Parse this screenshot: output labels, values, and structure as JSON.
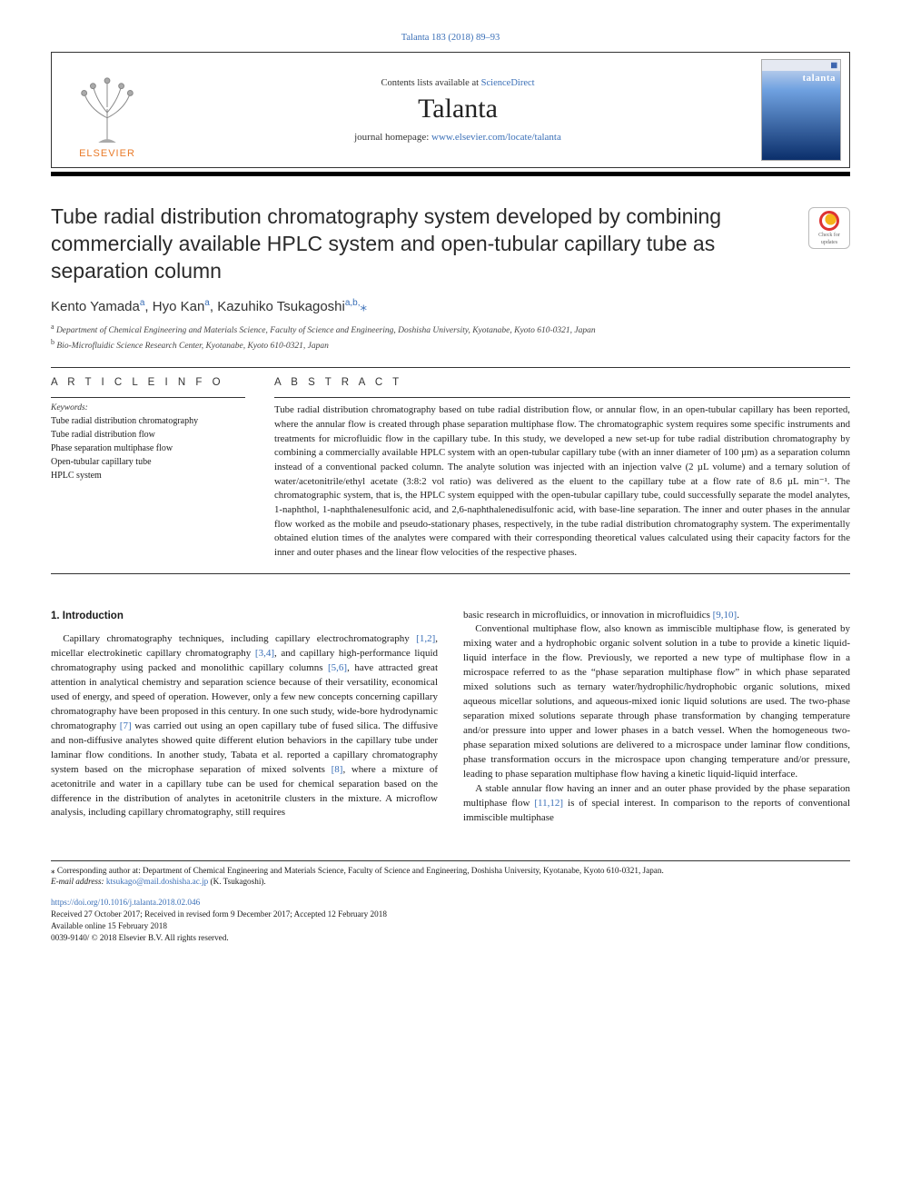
{
  "page_ref": "Talanta 183 (2018) 89–93",
  "header": {
    "contents_prefix": "Contents lists available at ",
    "contents_link": "ScienceDirect",
    "journal": "Talanta",
    "homepage_prefix": "journal homepage: ",
    "homepage_link": "www.elsevier.com/locate/talanta",
    "publisher_word": "ELSEVIER",
    "cover_word": "talanta"
  },
  "check_badge": {
    "line1": "Check for",
    "line2": "updates"
  },
  "title": "Tube radial distribution chromatography system developed by combining commercially available HPLC system and open-tubular capillary tube as separation column",
  "authors_html": "Kento Yamada<sup>a</sup>, Hyo Kan<sup>a</sup>, Kazuhiko Tsukagoshi<sup>a,b,</sup><span class=\"star\">⁎</span>",
  "affiliations": [
    {
      "sup": "a",
      "text": "Department of Chemical Engineering and Materials Science, Faculty of Science and Engineering, Doshisha University, Kyotanabe, Kyoto 610-0321, Japan"
    },
    {
      "sup": "b",
      "text": "Bio-Microfluidic Science Research Center, Kyotanabe, Kyoto 610-0321, Japan"
    }
  ],
  "article_info": {
    "head": "A R T I C L E  I N F O",
    "kw_label": "Keywords:",
    "keywords": [
      "Tube radial distribution chromatography",
      "Tube radial distribution flow",
      "Phase separation multiphase flow",
      "Open-tubular capillary tube",
      "HPLC system"
    ]
  },
  "abstract": {
    "head": "A B S T R A C T",
    "text": "Tube radial distribution chromatography based on tube radial distribution flow, or annular flow, in an open-tubular capillary has been reported, where the annular flow is created through phase separation multiphase flow. The chromatographic system requires some specific instruments and treatments for microfluidic flow in the capillary tube. In this study, we developed a new set-up for tube radial distribution chromatography by combining a commercially available HPLC system with an open-tubular capillary tube (with an inner diameter of 100 µm) as a separation column instead of a conventional packed column. The analyte solution was injected with an injection valve (2 µL volume) and a ternary solution of water/acetonitrile/ethyl acetate (3:8:2 vol ratio) was delivered as the eluent to the capillary tube at a flow rate of 8.6 µL min⁻¹. The chromatographic system, that is, the HPLC system equipped with the open-tubular capillary tube, could successfully separate the model analytes, 1-naphthol, 1-naphthalenesulfonic acid, and 2,6-naphthalenedisulfonic acid, with base-line separation. The inner and outer phases in the annular flow worked as the mobile and pseudo-stationary phases, respectively, in the tube radial distribution chromatography system. The experimentally obtained elution times of the analytes were compared with their corresponding theoretical values calculated using their capacity factors for the inner and outer phases and the linear flow velocities of the respective phases."
  },
  "body": {
    "intro_head": "1. Introduction",
    "col1_p1a": "Capillary chromatography techniques, including capillary electrochromatography ",
    "ref12": "[1,2]",
    "col1_p1b": ", micellar electrokinetic capillary chromatography ",
    "ref34": "[3,4]",
    "col1_p1c": ", and capillary high-performance liquid chromatography using packed and monolithic capillary columns ",
    "ref56": "[5,6]",
    "col1_p1d": ", have attracted great attention in analytical chemistry and separation science because of their versatility, economical used of energy, and speed of operation. However, only a few new concepts concerning capillary chromatography have been proposed in this century. In one such study, wide-bore hydrodynamic chromatography ",
    "ref7": "[7]",
    "col1_p1e": " was carried out using an open capillary tube of fused silica. The diffusive and non-diffusive analytes showed quite different elution behaviors in the capillary tube under laminar flow conditions. In another study, Tabata et al. reported a capillary chromatography system based on the microphase separation of mixed solvents ",
    "ref8": "[8]",
    "col1_p1f": ", where a mixture of acetonitrile and water in a capillary tube can be used for chemical separation based on the difference in the distribution of analytes in acetonitrile clusters in the mixture. A microflow analysis, including capillary chromatography, still requires",
    "col2_p1a": "basic research in microfluidics, or innovation in microfluidics ",
    "ref910": "[9,10]",
    "col2_p1a_end": ".",
    "col2_p2": "Conventional multiphase flow, also known as immiscible multiphase flow, is generated by mixing water and a hydrophobic organic solvent solution in a tube to provide a kinetic liquid-liquid interface in the flow. Previously, we reported a new type of multiphase flow in a microspace referred to as the “phase separation multiphase flow” in which phase separated mixed solutions such as ternary water/hydrophilic/hydrophobic organic solutions, mixed aqueous micellar solutions, and aqueous-mixed ionic liquid solutions are used. The two-phase separation mixed solutions separate through phase transformation by changing temperature and/or pressure into upper and lower phases in a batch vessel. When the homogeneous two-phase separation mixed solutions are delivered to a microspace under laminar flow conditions, phase transformation occurs in the microspace upon changing temperature and/or pressure, leading to phase separation multiphase flow having a kinetic liquid-liquid interface.",
    "col2_p3a": "A stable annular flow having an inner and an outer phase provided by the phase separation multiphase flow ",
    "ref1112": "[11,12]",
    "col2_p3b": " is of special interest. In comparison to the reports of conventional immiscible multiphase"
  },
  "footnote": {
    "corr_label": "⁎ Corresponding author at: ",
    "corr_text": "Department of Chemical Engineering and Materials Science, Faculty of Science and Engineering, Doshisha University, Kyotanabe, Kyoto 610-0321, Japan.",
    "email_label": "E-mail address: ",
    "email": "ktsukago@mail.doshisha.ac.jp",
    "email_suffix": " (K. Tsukagoshi)."
  },
  "doi": {
    "link": "https://doi.org/10.1016/j.talanta.2018.02.046",
    "received": "Received 27 October 2017; Received in revised form 9 December 2017; Accepted 12 February 2018",
    "available": "Available online 15 February 2018",
    "copyright": "0039-9140/ © 2018 Elsevier B.V. All rights reserved."
  },
  "colors": {
    "link": "#3a6fb7",
    "rule": "#000000",
    "text": "#1a1a1a",
    "elsevier_orange": "#e97b2a"
  }
}
